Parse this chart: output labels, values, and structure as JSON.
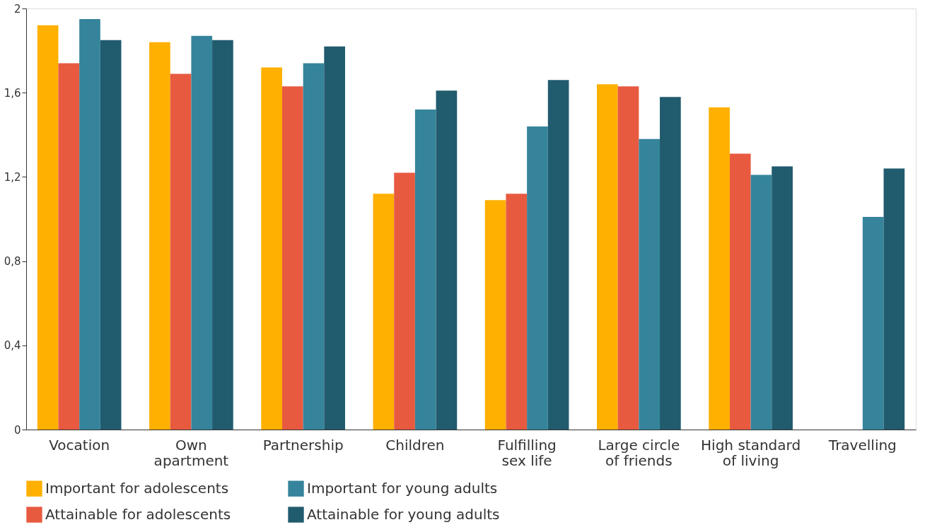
{
  "chart_data": {
    "type": "bar",
    "categories": [
      "Vocation",
      "Own apartment",
      "Partnership",
      "Children",
      "Fulfilling sex life",
      "Large circle of friends",
      "High standard of living",
      "Travelling"
    ],
    "series": [
      {
        "name": "Important for adolescents",
        "color": "#ffb000",
        "values": [
          1.92,
          1.84,
          1.72,
          1.12,
          1.09,
          1.64,
          1.53,
          null
        ]
      },
      {
        "name": "Attainable for adolescents",
        "color": "#e85a40",
        "values": [
          1.74,
          1.69,
          1.63,
          1.22,
          1.12,
          1.63,
          1.31,
          null
        ]
      },
      {
        "name": "Important for young adults",
        "color": "#35849b",
        "values": [
          1.95,
          1.87,
          1.74,
          1.52,
          1.44,
          1.38,
          1.21,
          1.01
        ]
      },
      {
        "name": "Attainable for young adults",
        "color": "#215b6e",
        "values": [
          1.85,
          1.85,
          1.82,
          1.61,
          1.66,
          1.58,
          1.25,
          1.24
        ]
      }
    ],
    "ylim": [
      0,
      2
    ],
    "yticks": [
      0,
      {
        "value": 0.4,
        "label": "0,4"
      },
      {
        "value": 0.8,
        "label": "0,8"
      },
      {
        "value": 1.2,
        "label": "1,2"
      },
      {
        "value": 1.6,
        "label": "1,6"
      },
      2
    ],
    "grid": false,
    "legend": "bottom left"
  }
}
